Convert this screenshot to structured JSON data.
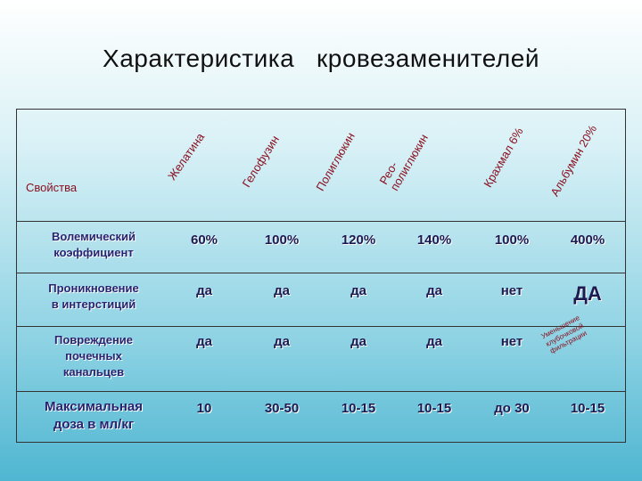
{
  "title": "Характеристика   кровезаменителей",
  "header": {
    "property_label": "Свойства",
    "columns": [
      "Желатина",
      "Гелофузин",
      "Полиглюкин",
      "Рео-\nполиглюкин",
      "Крахмал 6%",
      "Альбумин 20%"
    ]
  },
  "rows": [
    {
      "label": "Волемический\nкоэффициент",
      "values": [
        "60%",
        "100%",
        "120%",
        "140%",
        "100%",
        "400%"
      ]
    },
    {
      "label": "Проникновение\nв интерстиций",
      "values": [
        "да",
        "да",
        "да",
        "да",
        "нет",
        "ДА"
      ]
    },
    {
      "label": "Повреждение\nпочечных\nканальцев",
      "values": [
        "да",
        "да",
        "да",
        "да",
        "нет",
        "Уменьшение\nклубочковой\nфильтрации"
      ]
    },
    {
      "label": "Максимальная\nдоза в мл/кг",
      "values": [
        "10",
        "30-50",
        "10-15",
        "10-15",
        "до 30",
        "10-15"
      ]
    }
  ]
}
